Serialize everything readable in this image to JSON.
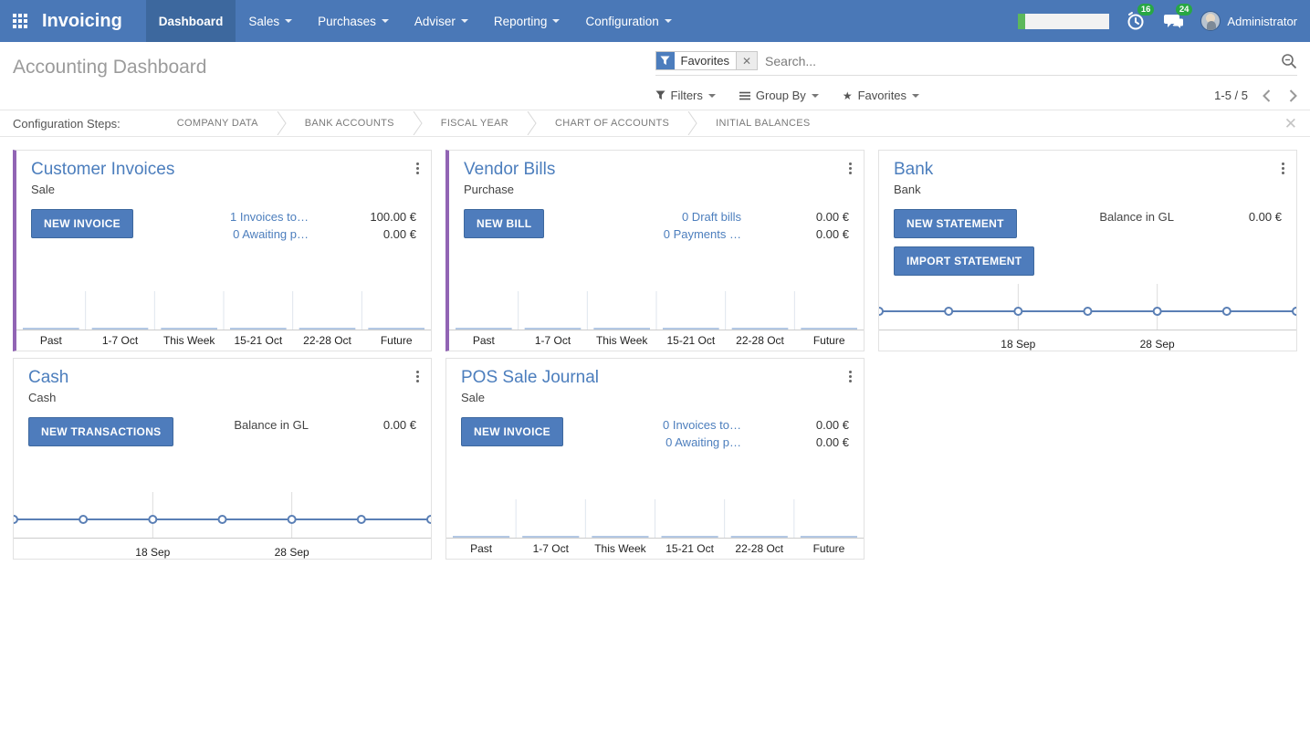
{
  "navbar": {
    "brand": "Invoicing",
    "menu": [
      {
        "label": "Dashboard",
        "active": true
      },
      {
        "label": "Sales"
      },
      {
        "label": "Purchases"
      },
      {
        "label": "Adviser"
      },
      {
        "label": "Reporting"
      },
      {
        "label": "Configuration"
      }
    ],
    "progress_percent": 8,
    "badges": {
      "activities": "16",
      "messages": "24"
    },
    "user_name": "Administrator"
  },
  "control_panel": {
    "title": "Accounting Dashboard",
    "search": {
      "facet": "Favorites",
      "placeholder": "Search..."
    },
    "filters_label": "Filters",
    "group_by_label": "Group By",
    "favorites_label": "Favorites",
    "pager": "1-5 / 5"
  },
  "config_steps": {
    "label": "Configuration Steps:",
    "steps": [
      "COMPANY DATA",
      "BANK ACCOUNTS",
      "FISCAL YEAR",
      "CHART OF ACCOUNTS",
      "INITIAL BALANCES"
    ]
  },
  "cards": [
    {
      "title": "Customer Invoices",
      "subtitle": "Sale",
      "accent": true,
      "buttons": [
        "NEW INVOICE"
      ],
      "rows": [
        {
          "label": "1 Invoices to…",
          "amount": "100.00 €"
        },
        {
          "label": "0 Awaiting p…",
          "amount": "0.00 €"
        }
      ]
    },
    {
      "title": "Vendor Bills",
      "subtitle": "Purchase",
      "accent": true,
      "buttons": [
        "NEW BILL"
      ],
      "rows": [
        {
          "label": "0 Draft bills",
          "amount": "0.00 €"
        },
        {
          "label": "0 Payments …",
          "amount": "0.00 €"
        }
      ]
    },
    {
      "title": "Bank",
      "subtitle": "Bank",
      "accent": false,
      "buttons": [
        "NEW STATEMENT",
        "IMPORT STATEMENT"
      ],
      "rows": [
        {
          "label": "Balance in GL",
          "amount": "0.00 €"
        }
      ]
    },
    {
      "title": "Cash",
      "subtitle": "Cash",
      "accent": false,
      "buttons": [
        "NEW TRANSACTIONS"
      ],
      "rows": [
        {
          "label": "Balance in GL",
          "amount": "0.00 €"
        }
      ]
    },
    {
      "title": "POS Sale Journal",
      "subtitle": "Sale",
      "accent": false,
      "buttons": [
        "NEW INVOICE"
      ],
      "rows": [
        {
          "label": "0 Invoices to…",
          "amount": "0.00 €"
        },
        {
          "label": "0 Awaiting p…",
          "amount": "0.00 €"
        }
      ]
    }
  ],
  "chart_data": [
    {
      "journal": "Customer Invoices",
      "type": "bar",
      "categories": [
        "Past",
        "1-7 Oct",
        "This Week",
        "15-21 Oct",
        "22-28 Oct",
        "Future"
      ],
      "values": [
        0,
        0,
        0,
        0,
        0,
        0
      ],
      "ylim": [
        0,
        1
      ],
      "legend": "none",
      "grid": "category-ticks"
    },
    {
      "journal": "Vendor Bills",
      "type": "bar",
      "categories": [
        "Past",
        "1-7 Oct",
        "This Week",
        "15-21 Oct",
        "22-28 Oct",
        "Future"
      ],
      "values": [
        0,
        0,
        0,
        0,
        0,
        0
      ],
      "ylim": [
        0,
        1
      ],
      "legend": "none",
      "grid": "category-ticks"
    },
    {
      "journal": "Bank",
      "type": "line",
      "x": [
        0,
        1,
        2,
        3,
        4,
        5,
        6
      ],
      "values": [
        0,
        0,
        0,
        0,
        0,
        0,
        0
      ],
      "tick_labels": [
        {
          "index": 2,
          "label": "18 Sep"
        },
        {
          "index": 4,
          "label": "28 Sep"
        }
      ],
      "legend": "none",
      "grid": "x-gridlines-at-ticks"
    },
    {
      "journal": "Cash",
      "type": "line",
      "x": [
        0,
        1,
        2,
        3,
        4,
        5,
        6
      ],
      "values": [
        0,
        0,
        0,
        0,
        0,
        0,
        0
      ],
      "tick_labels": [
        {
          "index": 2,
          "label": "18 Sep"
        },
        {
          "index": 4,
          "label": "28 Sep"
        }
      ],
      "legend": "none",
      "grid": "x-gridlines-at-ticks"
    },
    {
      "journal": "POS Sale Journal",
      "type": "bar",
      "categories": [
        "Past",
        "1-7 Oct",
        "This Week",
        "15-21 Oct",
        "22-28 Oct",
        "Future"
      ],
      "values": [
        0,
        0,
        0,
        0,
        0,
        0
      ],
      "ylim": [
        0,
        1
      ],
      "legend": "none",
      "grid": "category-ticks"
    }
  ],
  "colors": {
    "navbar": "#4a78b7",
    "navbar_active": "#3d689e",
    "accent_purple": "#9164b4",
    "primary_blue": "#4c7dbd",
    "badge_green": "#28a745",
    "progress_green": "#5cb85c",
    "bar_fill": "#b3c8e4",
    "bar_tick": "#dfe5ee",
    "line_stroke": "#5a7fb5",
    "grid_line": "#dddddd"
  }
}
